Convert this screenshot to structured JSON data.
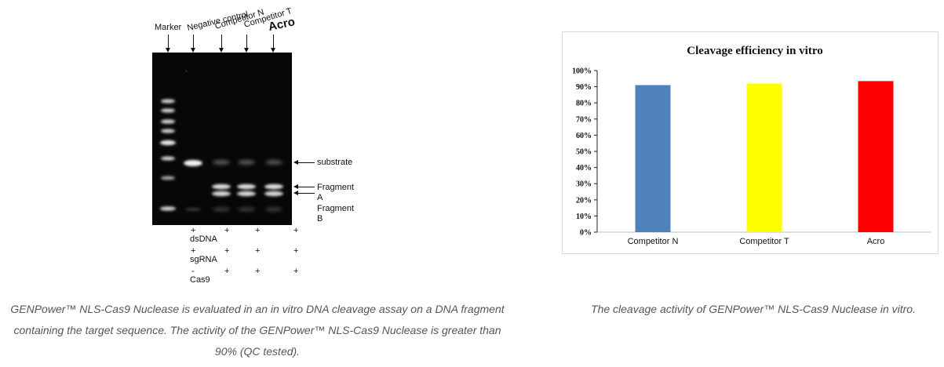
{
  "gel": {
    "lane_titles": {
      "marker": "Marker",
      "negative_control": "Negative control",
      "competitor_n": "Competitor N",
      "competitor_t": "Competitor T",
      "acro": "Acro"
    },
    "band_labels": {
      "substrate": "substrate",
      "fragment_a_line1": "Fragment",
      "fragment_a_line2": "A",
      "fragment_b_line1": "Fragment",
      "fragment_b_line2": "B"
    },
    "conditions": [
      {
        "name": "dsDNA",
        "lane1": "+",
        "lane2": "+",
        "lane3": "+",
        "lane4": "+"
      },
      {
        "name": "sgRNA",
        "lane1": "+",
        "lane2": "+",
        "lane3": "+",
        "lane4": "+"
      },
      {
        "name": "Cas9",
        "lane1": "-",
        "lane2": "+",
        "lane3": "+",
        "lane4": "+"
      }
    ]
  },
  "chart_data": {
    "type": "bar",
    "title": "Cleavage efficiency in vitro",
    "xlabel": "",
    "ylabel": "",
    "categories": [
      "Competitor N",
      "Competitor T",
      "Acro"
    ],
    "values": [
      91,
      92,
      93.5
    ],
    "colors": [
      "#4f81bd",
      "#ffff00",
      "#ff0000"
    ],
    "ylim": [
      0,
      100
    ],
    "yticks": [
      "0%",
      "10%",
      "20%",
      "30%",
      "40%",
      "50%",
      "60%",
      "70%",
      "80%",
      "90%",
      "100%"
    ],
    "grid": false,
    "legend": "none"
  },
  "captions": {
    "left": "GENPower™ NLS-Cas9 Nuclease is evaluated in an in vitro DNA cleavage assay on a DNA fragment containing the target sequence. The activity of the GENPower™ NLS-Cas9 Nuclease is greater than 90% (QC tested).",
    "right": "The cleavage activity of GENPower™ NLS-Cas9 Nuclease in vitro."
  }
}
